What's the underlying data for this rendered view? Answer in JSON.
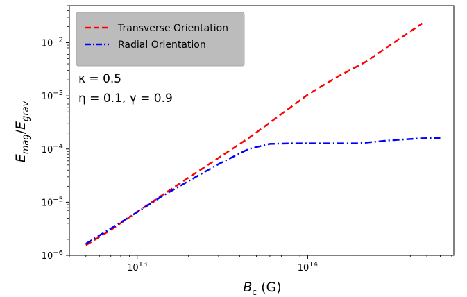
{
  "chart_data": {
    "type": "line",
    "xlabel": "B_c (G)",
    "ylabel": "E_mag/E_grav",
    "x_scale": "log",
    "y_scale": "log",
    "xlim": [
      4000000000000.0,
      720000000000000.0
    ],
    "ylim": [
      1e-06,
      0.05
    ],
    "x_ticks": [
      {
        "value": 10000000000000.0,
        "base": "10",
        "exp": "13"
      },
      {
        "value": 100000000000000.0,
        "base": "10",
        "exp": "14"
      }
    ],
    "y_ticks": [
      {
        "value": 1e-06,
        "base": "10",
        "exp": "−6"
      },
      {
        "value": 1e-05,
        "base": "10",
        "exp": "−5"
      },
      {
        "value": 0.0001,
        "base": "10",
        "exp": "−4"
      },
      {
        "value": 0.001,
        "base": "10",
        "exp": "−3"
      },
      {
        "value": 0.01,
        "base": "10",
        "exp": "−2"
      }
    ],
    "grid": false,
    "legend_position": "top-left",
    "series": [
      {
        "name": "Transverse Orientation",
        "color": "#ff0000",
        "style": "dashed",
        "x": [
          5000000000000.0,
          7000000000000.0,
          10000000000000.0,
          14000000000000.0,
          20000000000000.0,
          30000000000000.0,
          45000000000000.0,
          65000000000000.0,
          100000000000000.0,
          150000000000000.0,
          220000000000000.0,
          320000000000000.0,
          470000000000000.0
        ],
        "y": [
          1.55e-06,
          3e-06,
          6.6e-06,
          1.35e-05,
          2.9e-05,
          6.8e-05,
          0.00016,
          0.00038,
          0.00105,
          0.0023,
          0.0044,
          0.01,
          0.023
        ]
      },
      {
        "name": "Radial Orientation",
        "color": "#0000ff",
        "style": "dashdot",
        "x": [
          5000000000000.0,
          7000000000000.0,
          10000000000000.0,
          14000000000000.0,
          20000000000000.0,
          30000000000000.0,
          45000000000000.0,
          60000000000000.0,
          80000000000000.0,
          120000000000000.0,
          200000000000000.0,
          300000000000000.0,
          450000000000000.0,
          600000000000000.0
        ],
        "y": [
          1.65e-06,
          3.2e-06,
          6.5e-06,
          1.3e-05,
          2.5e-05,
          5.2e-05,
          0.0001,
          0.000125,
          0.000128,
          0.000128,
          0.000128,
          0.000145,
          0.000158,
          0.000162
        ]
      }
    ],
    "annotations": [
      {
        "text": "κ = 0.5"
      },
      {
        "text": "η = 0.1, γ = 0.9"
      }
    ]
  }
}
